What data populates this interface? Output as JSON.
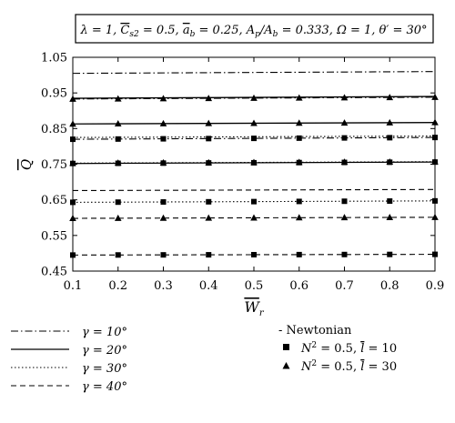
{
  "chart_data": {
    "type": "line",
    "title": "λ = 1, C̄s2 = 0.5, āb = 0.25, Ap/Ab = 0.333, Ω = 1, θ′ = 30°",
    "title_parts": {
      "lambda": "λ = 1, ",
      "cs2_sym": "C",
      "cs2_sub": "s2",
      "cs2_rest": " = 0.5, ",
      "ab_sym": "a",
      "ab_sub": "b",
      "ab_rest": " = 0.25, ",
      "ap_sym": "A",
      "ap_sub": "p",
      "ap_mid": "/A",
      "ab2_sub": "b",
      "ap_rest": " = 0.333, Ω = 1, θ′ = 30°"
    },
    "xlabel_sym": "W",
    "xlabel_sub": "r",
    "ylabel": "Q",
    "xlim": [
      0.1,
      0.9
    ],
    "ylim": [
      0.45,
      1.05
    ],
    "xticks": [
      "0.1",
      "0.2",
      "0.3",
      "0.4",
      "0.5",
      "0.6",
      "0.7",
      "0.8",
      "0.9"
    ],
    "yticks": [
      "0.45",
      "0.55",
      "0.65",
      "0.75",
      "0.85",
      "0.95",
      "1.05"
    ],
    "grid": false,
    "marker_x": [
      0.1,
      0.2,
      0.3,
      0.4,
      0.5,
      0.6,
      0.7,
      0.8,
      0.9
    ],
    "series": [
      {
        "name": "γ = 10°",
        "style": "dashdot",
        "case": "newtonian",
        "y0": 1.005,
        "y1": 1.01
      },
      {
        "name": "γ = 10°",
        "style": "dashdot",
        "case": "l10",
        "marker": "square",
        "y0": 0.82,
        "y1": 0.825
      },
      {
        "name": "γ = 10°",
        "style": "dashdot",
        "case": "l30",
        "marker": "triangle",
        "y0": 0.933,
        "y1": 0.938
      },
      {
        "name": "γ = 20°",
        "style": "solid",
        "case": "newtonian",
        "y0": 0.935,
        "y1": 0.94
      },
      {
        "name": "γ = 20°",
        "style": "solid",
        "case": "l10",
        "marker": "square",
        "y0": 0.752,
        "y1": 0.756
      },
      {
        "name": "γ = 20°",
        "style": "solid",
        "case": "l30",
        "marker": "triangle",
        "y0": 0.863,
        "y1": 0.867
      },
      {
        "name": "γ = 30°",
        "style": "dotted",
        "case": "newtonian",
        "y0": 0.825,
        "y1": 0.829
      },
      {
        "name": "γ = 30°",
        "style": "dotted",
        "case": "l10",
        "marker": "square",
        "y0": 0.643,
        "y1": 0.647
      },
      {
        "name": "γ = 30°",
        "style": "dotted",
        "case": "l30",
        "marker": "triangle",
        "y0": 0.753,
        "y1": 0.757
      },
      {
        "name": "γ = 40°",
        "style": "dashed",
        "case": "newtonian",
        "y0": 0.676,
        "y1": 0.679
      },
      {
        "name": "γ = 40°",
        "style": "dashed",
        "case": "l10",
        "marker": "square",
        "y0": 0.495,
        "y1": 0.497
      },
      {
        "name": "γ = 40°",
        "style": "dashed",
        "case": "l30",
        "marker": "triangle",
        "y0": 0.598,
        "y1": 0.601
      }
    ],
    "legend_lines": [
      {
        "label": "γ = 10°",
        "style": "dashdot"
      },
      {
        "label": "γ = 20°",
        "style": "solid"
      },
      {
        "label": "γ = 30°",
        "style": "dotted"
      },
      {
        "label": "γ = 40°",
        "style": "dashed"
      }
    ],
    "legend_cases": {
      "newtonian": "- Newtonian",
      "sq_pre": "N",
      "sq_sup": "2",
      "sq_mid": " = 0.5, ",
      "sq_l": "l",
      "sq_rest": " = 10",
      "tri_pre": "N",
      "tri_sup": "2",
      "tri_mid": " = 0.5, ",
      "tri_l": "l",
      "tri_rest": " = 30"
    }
  }
}
